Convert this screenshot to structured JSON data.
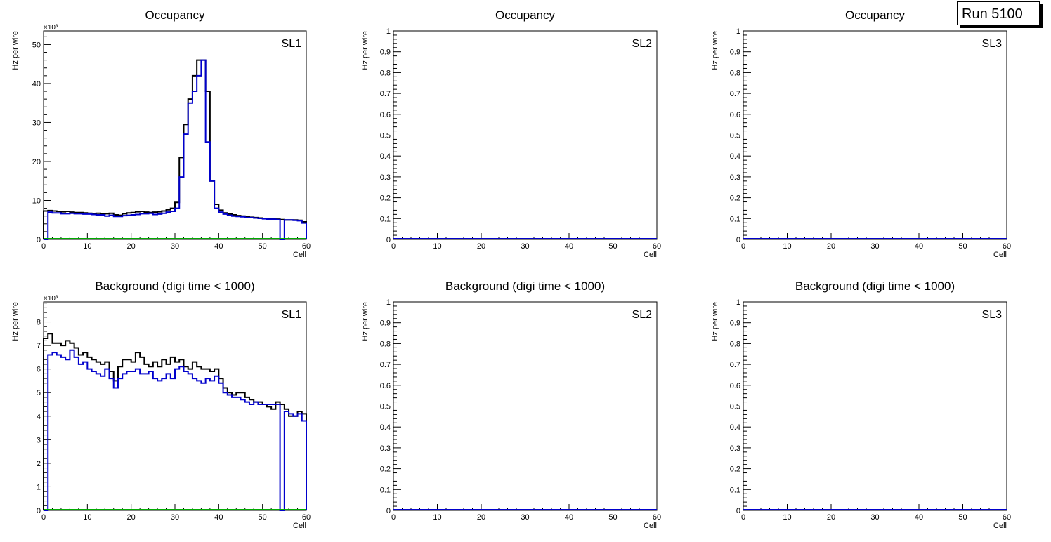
{
  "run_label": "Run 5100",
  "colors": {
    "total": "#000000",
    "blue": "#0000cc",
    "green": "#00aa00",
    "frame": "#000000"
  },
  "chart_data": [
    {
      "type": "line",
      "step": true,
      "title": "Occupancy",
      "label": "SL1",
      "xlabel": "Cell",
      "ylabel": "Hz per wire",
      "exponent": "×10³",
      "xlim": [
        0,
        60
      ],
      "ylim": [
        0,
        53.5
      ],
      "xticks": [
        0,
        10,
        20,
        30,
        40,
        50,
        60
      ],
      "yticks": [
        0,
        10,
        20,
        30,
        40,
        50
      ],
      "bin_start": 0,
      "bin_width": 1,
      "series": [
        {
          "name": "total",
          "color": "#000000",
          "values": [
            7.3,
            7.4,
            7.3,
            7.2,
            7.1,
            7.2,
            7.0,
            6.9,
            6.9,
            6.8,
            6.7,
            6.6,
            6.7,
            6.5,
            6.6,
            6.7,
            6.3,
            6.2,
            6.6,
            6.8,
            6.9,
            7.1,
            7.2,
            7.0,
            6.9,
            7.0,
            7.1,
            7.3,
            7.6,
            8.0,
            9.5,
            21.0,
            29.5,
            36.0,
            42.0,
            46.0,
            46.0,
            38.0,
            15.0,
            9.0,
            7.5,
            6.8,
            6.5,
            6.3,
            6.1,
            6.0,
            5.8,
            5.7,
            5.6,
            5.5,
            5.4,
            5.3,
            5.3,
            5.2,
            5.1,
            5.0,
            5.0,
            5.0,
            4.9,
            4.5
          ]
        },
        {
          "name": "blue",
          "color": "#0000cc",
          "values": [
            0,
            7.0,
            6.8,
            6.8,
            6.6,
            6.6,
            6.7,
            6.6,
            6.6,
            6.5,
            6.5,
            6.4,
            6.3,
            6.3,
            6.0,
            6.2,
            5.9,
            5.9,
            6.1,
            6.2,
            6.3,
            6.4,
            6.6,
            6.6,
            6.7,
            6.4,
            6.5,
            6.7,
            7.0,
            7.2,
            8.0,
            16.0,
            27.0,
            35.0,
            38.0,
            42.0,
            46.0,
            25.0,
            15.0,
            8.0,
            7.0,
            6.5,
            6.2,
            6.0,
            5.9,
            5.8,
            5.6,
            5.6,
            5.5,
            5.4,
            5.3,
            5.2,
            5.2,
            5.1,
            0,
            5.0,
            5.0,
            4.9,
            4.8,
            4.2
          ]
        },
        {
          "name": "green",
          "color": "#00aa00",
          "values": []
        }
      ]
    },
    {
      "type": "line",
      "step": true,
      "title": "Occupancy",
      "label": "SL2",
      "xlabel": "Cell",
      "ylabel": "Hz per wire",
      "exponent": "",
      "xlim": [
        0,
        60
      ],
      "ylim": [
        0,
        1
      ],
      "xticks": [
        0,
        10,
        20,
        30,
        40,
        50,
        60
      ],
      "yticks": [
        0,
        0.1,
        0.2,
        0.3,
        0.4,
        0.5,
        0.6,
        0.7,
        0.8,
        0.9,
        1
      ],
      "ytick_labels": [
        "0",
        "0.1",
        "0.2",
        "0.3",
        "0.4",
        "0.5",
        "0.6",
        "0.7",
        "0.8",
        "0.9",
        "1"
      ],
      "bin_start": 0,
      "bin_width": 1,
      "series": [
        {
          "name": "empty",
          "color": "#0000cc",
          "values": []
        }
      ]
    },
    {
      "type": "line",
      "step": true,
      "title": "Occupancy",
      "label": "SL3",
      "xlabel": "Cell",
      "ylabel": "Hz per wire",
      "exponent": "",
      "xlim": [
        0,
        60
      ],
      "ylim": [
        0,
        1
      ],
      "xticks": [
        0,
        10,
        20,
        30,
        40,
        50,
        60
      ],
      "yticks": [
        0,
        0.1,
        0.2,
        0.3,
        0.4,
        0.5,
        0.6,
        0.7,
        0.8,
        0.9,
        1
      ],
      "ytick_labels": [
        "0",
        "0.1",
        "0.2",
        "0.3",
        "0.4",
        "0.5",
        "0.6",
        "0.7",
        "0.8",
        "0.9",
        "1"
      ],
      "bin_start": 0,
      "bin_width": 1,
      "series": [
        {
          "name": "empty",
          "color": "#0000cc",
          "values": []
        }
      ]
    },
    {
      "type": "line",
      "step": true,
      "title": "Background (digi time < 1000)",
      "label": "SL1",
      "xlabel": "Cell",
      "ylabel": "Hz per wire",
      "exponent": "×10³",
      "xlim": [
        0,
        60
      ],
      "ylim": [
        0,
        8.85
      ],
      "xticks": [
        0,
        10,
        20,
        30,
        40,
        50,
        60
      ],
      "yticks": [
        0,
        1,
        2,
        3,
        4,
        5,
        6,
        7,
        8
      ],
      "bin_start": 0,
      "bin_width": 1,
      "series": [
        {
          "name": "total",
          "color": "#000000",
          "values": [
            7.3,
            7.5,
            7.1,
            7.1,
            7.0,
            7.2,
            7.1,
            6.9,
            6.6,
            6.7,
            6.5,
            6.4,
            6.3,
            6.2,
            6.3,
            5.9,
            5.5,
            6.1,
            6.4,
            6.4,
            6.3,
            6.7,
            6.5,
            6.2,
            6.1,
            6.3,
            6.1,
            6.4,
            6.2,
            6.5,
            6.3,
            6.4,
            6.1,
            6.0,
            6.3,
            6.1,
            6.0,
            6.0,
            5.9,
            6.0,
            5.6,
            5.2,
            5.0,
            4.9,
            5.0,
            5.0,
            4.8,
            4.7,
            4.6,
            4.6,
            4.5,
            4.4,
            4.3,
            4.6,
            4.5,
            4.3,
            4.0,
            4.0,
            4.2,
            4.1
          ]
        },
        {
          "name": "blue",
          "color": "#0000cc",
          "values": [
            0,
            6.6,
            6.7,
            6.6,
            6.5,
            6.4,
            6.8,
            6.5,
            6.2,
            6.3,
            6.0,
            5.9,
            5.8,
            5.7,
            6.0,
            5.6,
            5.2,
            5.6,
            5.8,
            5.9,
            5.9,
            6.0,
            5.8,
            5.8,
            5.9,
            5.6,
            5.5,
            5.6,
            5.8,
            5.6,
            6.0,
            6.1,
            5.9,
            5.8,
            5.6,
            5.5,
            5.4,
            5.6,
            5.5,
            5.7,
            5.4,
            5.0,
            4.9,
            4.8,
            4.8,
            4.7,
            4.6,
            4.5,
            4.6,
            4.5,
            4.5,
            4.5,
            4.5,
            4.5,
            0,
            4.2,
            4.1,
            4.0,
            4.1,
            3.8
          ]
        },
        {
          "name": "green",
          "color": "#00aa00",
          "values": []
        }
      ]
    },
    {
      "type": "line",
      "step": true,
      "title": "Background (digi time < 1000)",
      "label": "SL2",
      "xlabel": "Cell",
      "ylabel": "Hz per wire",
      "exponent": "",
      "xlim": [
        0,
        60
      ],
      "ylim": [
        0,
        1
      ],
      "xticks": [
        0,
        10,
        20,
        30,
        40,
        50,
        60
      ],
      "yticks": [
        0,
        0.1,
        0.2,
        0.3,
        0.4,
        0.5,
        0.6,
        0.7,
        0.8,
        0.9,
        1
      ],
      "ytick_labels": [
        "0",
        "0.1",
        "0.2",
        "0.3",
        "0.4",
        "0.5",
        "0.6",
        "0.7",
        "0.8",
        "0.9",
        "1"
      ],
      "bin_start": 0,
      "bin_width": 1,
      "series": [
        {
          "name": "empty",
          "color": "#0000cc",
          "values": []
        }
      ]
    },
    {
      "type": "line",
      "step": true,
      "title": "Background (digi time < 1000)",
      "label": "SL3",
      "xlabel": "Cell",
      "ylabel": "Hz per wire",
      "exponent": "",
      "xlim": [
        0,
        60
      ],
      "ylim": [
        0,
        1
      ],
      "xticks": [
        0,
        10,
        20,
        30,
        40,
        50,
        60
      ],
      "yticks": [
        0,
        0.1,
        0.2,
        0.3,
        0.4,
        0.5,
        0.6,
        0.7,
        0.8,
        0.9,
        1
      ],
      "ytick_labels": [
        "0",
        "0.1",
        "0.2",
        "0.3",
        "0.4",
        "0.5",
        "0.6",
        "0.7",
        "0.8",
        "0.9",
        "1"
      ],
      "bin_start": 0,
      "bin_width": 1,
      "series": [
        {
          "name": "empty",
          "color": "#0000cc",
          "values": []
        }
      ]
    }
  ]
}
